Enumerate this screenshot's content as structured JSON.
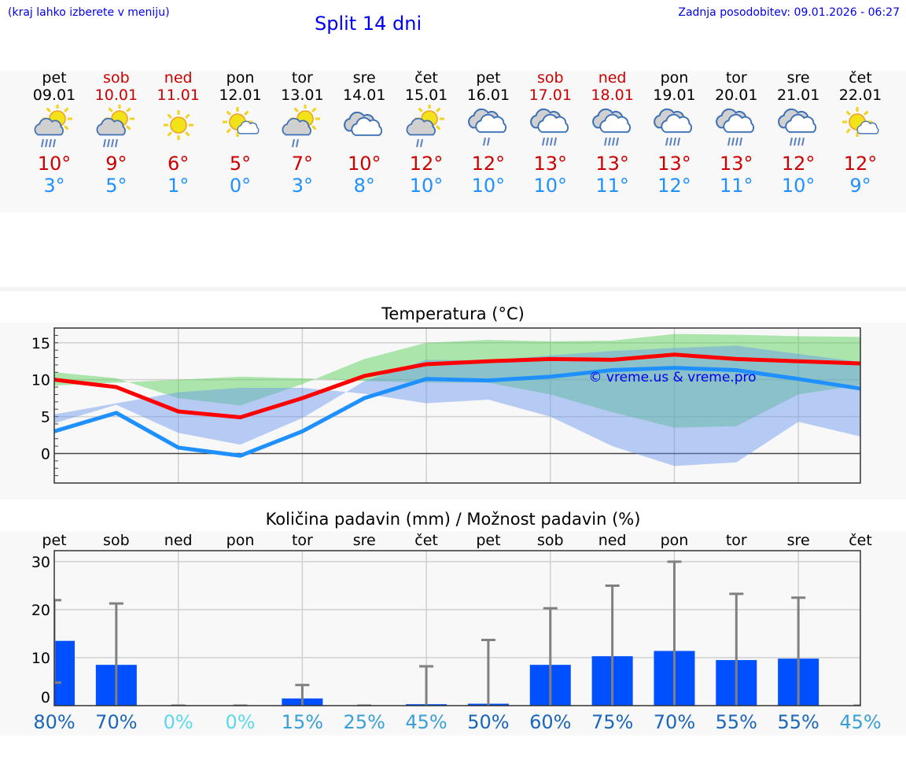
{
  "header": {
    "hint": "(kraj lahko izberete v meniju)",
    "title": "Split 14 dni",
    "updated": "Zadnja posodobitev: 09.01.2026 - 06:27"
  },
  "colors": {
    "weekday": "#000000",
    "weekend": "#cc0000",
    "max": "#cc0000",
    "min": "#1e90ff",
    "bar": "#0050ff"
  },
  "days": [
    {
      "name": "pet",
      "date": "09.01",
      "weekend": false,
      "icon": "sun-cloud-rain-icon",
      "max": "10°",
      "min": "3°"
    },
    {
      "name": "sob",
      "date": "10.01",
      "weekend": true,
      "icon": "sun-cloud-rain-icon",
      "max": "9°",
      "min": "5°"
    },
    {
      "name": "ned",
      "date": "11.01",
      "weekend": true,
      "icon": "sun-icon",
      "max": "6°",
      "min": "1°"
    },
    {
      "name": "pon",
      "date": "12.01",
      "weekend": false,
      "icon": "sun-small-cloud-icon",
      "max": "5°",
      "min": "0°"
    },
    {
      "name": "tor",
      "date": "13.01",
      "weekend": false,
      "icon": "sun-cloud-drizzle-icon",
      "max": "7°",
      "min": "3°"
    },
    {
      "name": "sre",
      "date": "14.01",
      "weekend": false,
      "icon": "cloudy-icon",
      "max": "10°",
      "min": "8°"
    },
    {
      "name": "čet",
      "date": "15.01",
      "weekend": false,
      "icon": "sun-cloud-drizzle-icon",
      "max": "12°",
      "min": "10°"
    },
    {
      "name": "pet",
      "date": "16.01",
      "weekend": false,
      "icon": "cloud-drizzle-icon",
      "max": "12°",
      "min": "10°"
    },
    {
      "name": "sob",
      "date": "17.01",
      "weekend": true,
      "icon": "cloud-rain-icon",
      "max": "13°",
      "min": "10°"
    },
    {
      "name": "ned",
      "date": "18.01",
      "weekend": true,
      "icon": "cloud-rain-icon",
      "max": "13°",
      "min": "11°"
    },
    {
      "name": "pon",
      "date": "19.01",
      "weekend": false,
      "icon": "cloud-rain-icon",
      "max": "13°",
      "min": "12°"
    },
    {
      "name": "tor",
      "date": "20.01",
      "weekend": false,
      "icon": "cloud-rain-icon",
      "max": "13°",
      "min": "11°"
    },
    {
      "name": "sre",
      "date": "21.01",
      "weekend": false,
      "icon": "cloud-rain-icon",
      "max": "12°",
      "min": "10°"
    },
    {
      "name": "čet",
      "date": "22.01",
      "weekend": false,
      "icon": "sun-small-cloud-icon",
      "max": "12°",
      "min": "9°"
    }
  ],
  "chart_data": [
    {
      "type": "line",
      "title": "Temperatura (°C)",
      "ylim": [
        -4,
        17
      ],
      "yticks": [
        "15",
        "10",
        "5",
        "0"
      ],
      "ytick_values": [
        15,
        10,
        5,
        0
      ],
      "grid": true,
      "watermark": "© vreme.us & vreme.pro",
      "series": [
        {
          "name": "max",
          "color": "#ff0000",
          "values": [
            10,
            9,
            5.7,
            4.9,
            7.5,
            10.5,
            12.1,
            12.5,
            12.8,
            12.7,
            13.4,
            12.8,
            12.5,
            12.2
          ],
          "band_high": [
            11,
            10.2,
            7.5,
            6.5,
            9.4,
            12.8,
            15,
            15.4,
            15.2,
            15.3,
            16.2,
            16.1,
            15.9,
            15.8
          ],
          "band_low": [
            9.3,
            8,
            3.7,
            3.5,
            5.6,
            8,
            9.6,
            9.6,
            9.8,
            10.2,
            10.4,
            10,
            9.6,
            9.2
          ],
          "band_color": "#4fcf4f"
        },
        {
          "name": "min",
          "color": "#1e90ff",
          "values": [
            3,
            5.5,
            0.8,
            -0.3,
            3,
            7.5,
            10.1,
            9.9,
            10.4,
            11.3,
            11.6,
            11.3,
            10.1,
            8.8
          ],
          "band_high": [
            4.1,
            6.6,
            2.8,
            1.2,
            4.8,
            9.8,
            12.7,
            12.6,
            13.3,
            13.9,
            14.3,
            14.6,
            13.5,
            12.4
          ],
          "band_low": [
            2.3,
            4.3,
            -1.2,
            -1.7,
            1,
            5,
            7.3,
            6.8,
            8.1,
            8.9,
            8.9,
            8.3,
            6.8,
            5.3
          ],
          "band_color": "#6495ed"
        }
      ]
    },
    {
      "type": "bar",
      "title": "Količina padavin (mm) / Možnost padavin (%)",
      "ylim": [
        0,
        32.3
      ],
      "yticks": [
        "30",
        "20",
        "10",
        "0"
      ],
      "ytick_values": [
        30,
        20,
        10,
        0
      ],
      "grid": true,
      "categories": [
        "pet",
        "sob",
        "ned",
        "pon",
        "tor",
        "sre",
        "čet",
        "pet",
        "sob",
        "ned",
        "pon",
        "tor",
        "sre",
        "čet"
      ],
      "values": [
        13.5,
        8.5,
        0,
        0,
        1.5,
        0,
        0.3,
        0.4,
        8.5,
        10.3,
        11.4,
        9.5,
        9.8,
        0
      ],
      "err_low": [
        4.8,
        0,
        0,
        0,
        0,
        0,
        0,
        0,
        0,
        0,
        0,
        0,
        0,
        0
      ],
      "err_high": [
        22,
        21.3,
        0,
        0,
        4.3,
        0,
        8.2,
        13.7,
        20.3,
        25,
        30,
        23.3,
        22.5,
        0
      ],
      "probability": [
        "80%",
        "70%",
        "0%",
        "0%",
        "15%",
        "25%",
        "45%",
        "50%",
        "60%",
        "75%",
        "70%",
        "55%",
        "55%",
        "45%"
      ],
      "probability_values": [
        80,
        70,
        0,
        0,
        15,
        25,
        45,
        50,
        60,
        75,
        70,
        55,
        55,
        45
      ]
    }
  ]
}
